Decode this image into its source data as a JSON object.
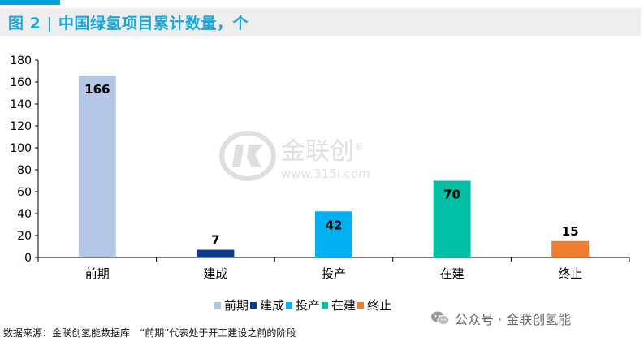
{
  "header": {
    "title": "图 2 | 中国绿氢项目累计数量，个"
  },
  "chart_data": {
    "type": "bar",
    "categories": [
      "前期",
      "建成",
      "投产",
      "在建",
      "终止"
    ],
    "values": [
      166,
      7,
      42,
      70,
      15
    ],
    "colors": [
      "#b4c7e7",
      "#0b3a8c",
      "#00b0f0",
      "#00bfa5",
      "#ed7d31"
    ],
    "title": "",
    "xlabel": "",
    "ylabel": "",
    "ylim": [
      0,
      180
    ],
    "yticks": [
      "0",
      "20",
      "40",
      "60",
      "80",
      "100",
      "120",
      "140",
      "160",
      "180"
    ],
    "grid": false,
    "legend": "bottom"
  },
  "legend": {
    "items": [
      {
        "label": "前期",
        "color": "#b4c7e7"
      },
      {
        "label": "建成",
        "color": "#0b3a8c"
      },
      {
        "label": "投产",
        "color": "#00b0f0"
      },
      {
        "label": "在建",
        "color": "#00bfa5"
      },
      {
        "label": "终止",
        "color": "#ed7d31"
      }
    ]
  },
  "watermark": {
    "name": "金联创",
    "url": "www.315i.com",
    "registered": "®"
  },
  "footer": {
    "source": "数据来源：金联创氢能数据库　“前期”代表处于开工建设之前的阶段",
    "wechat": "公众号 · 金联创氢能",
    "wechat_icon": "wechat-icon"
  }
}
